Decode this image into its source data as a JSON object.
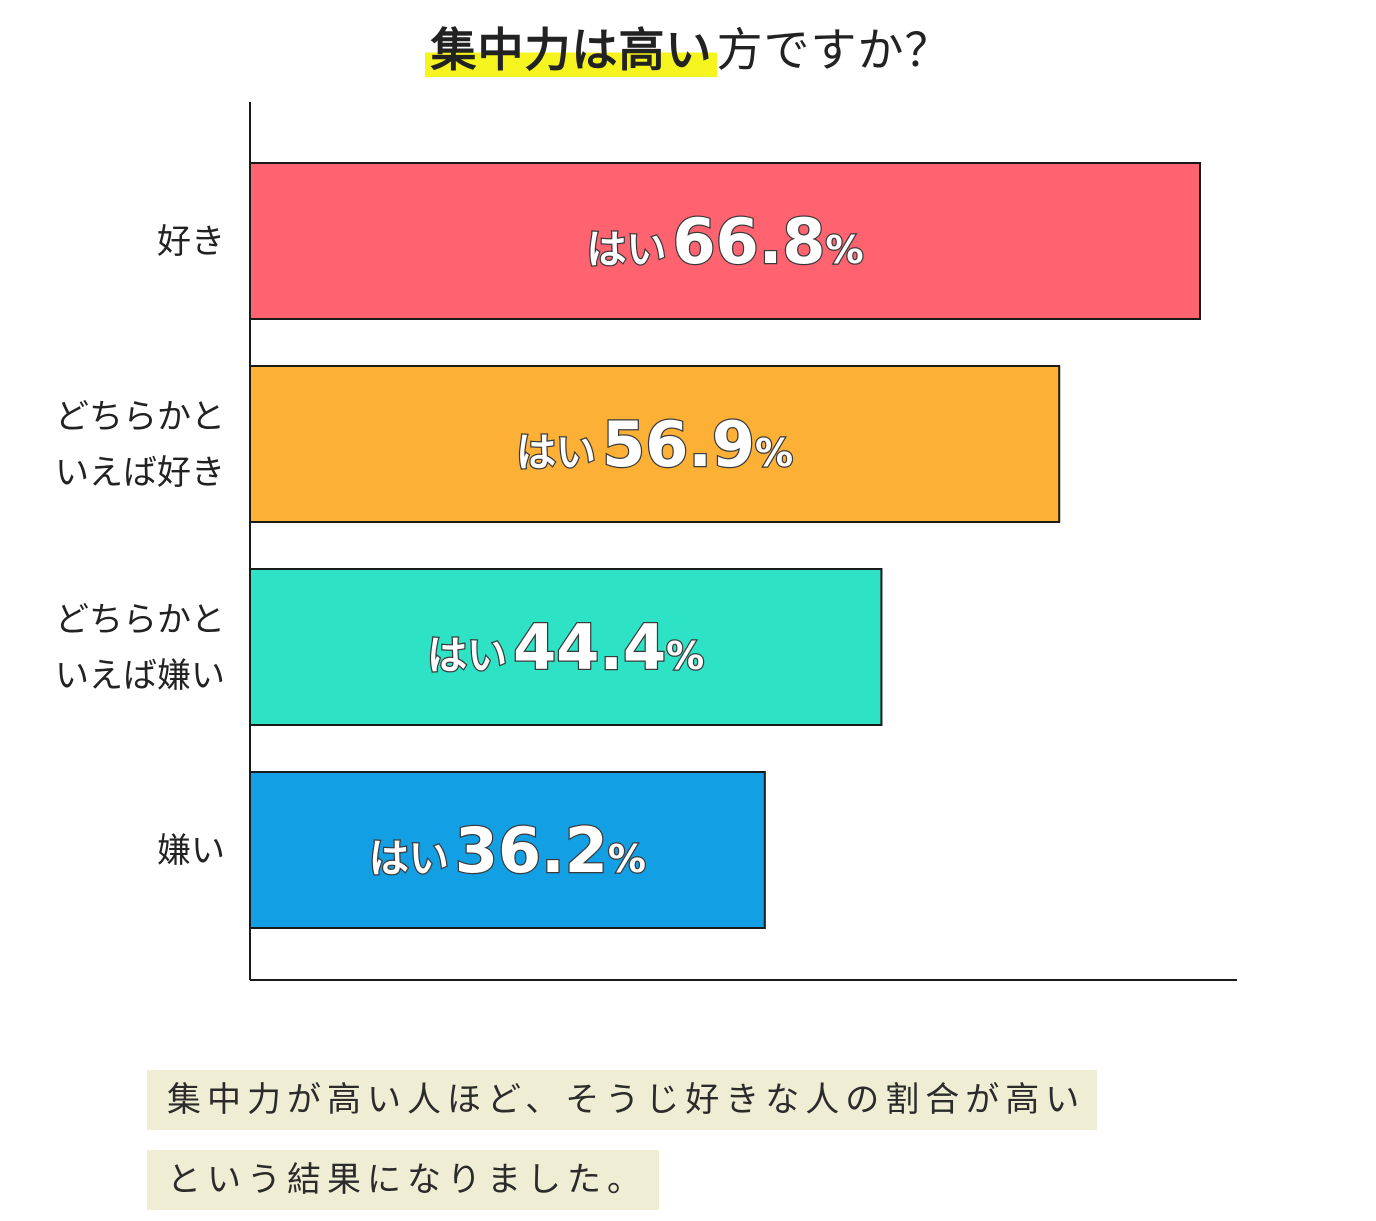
{
  "title_highlight": "集中力は高い",
  "title_rest": "方ですか？",
  "chart_data": {
    "type": "bar",
    "orientation": "horizontal",
    "categories": [
      [
        "好き"
      ],
      [
        "どちらかと",
        "いえば好き"
      ],
      [
        "どちらかと",
        "いえば嫌い"
      ],
      [
        "嫌い"
      ]
    ],
    "values": [
      66.8,
      56.9,
      44.4,
      36.2
    ],
    "value_prefix": "はい",
    "value_suffix": "%",
    "colors": [
      "#ff6370",
      "#fdb036",
      "#2ee2c6",
      "#139fe4"
    ],
    "xlim": [
      0,
      70
    ]
  },
  "notes": [
    "集中力が高い人ほど、そうじ好きな人の割合が高い",
    "という結果になりました。"
  ]
}
